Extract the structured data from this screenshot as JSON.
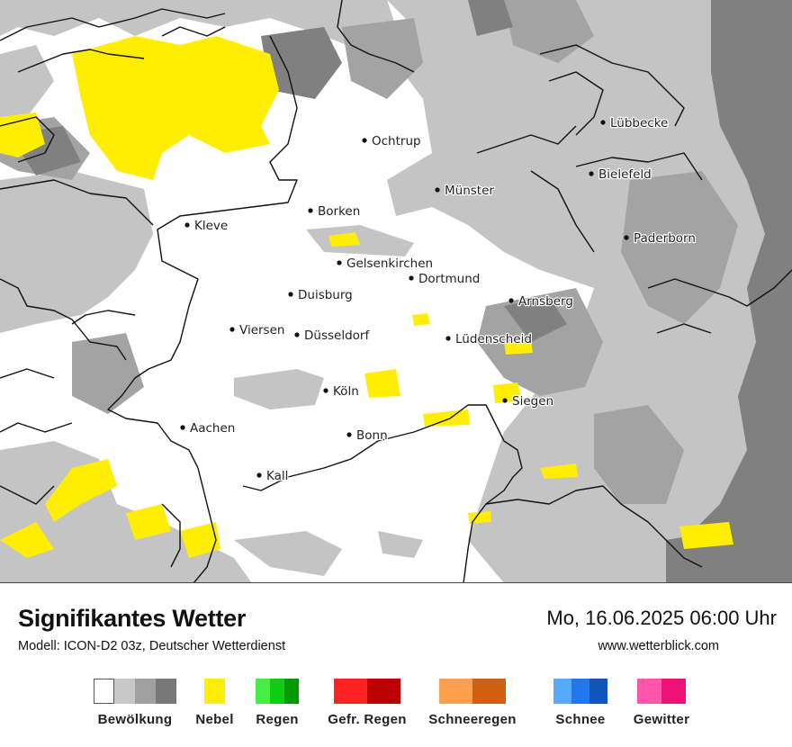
{
  "map": {
    "cities": [
      {
        "name": "Lübbecke"
      },
      {
        "name": "Ochtrup"
      },
      {
        "name": "Bielefeld"
      },
      {
        "name": "Münster"
      },
      {
        "name": "Borken"
      },
      {
        "name": "Kleve"
      },
      {
        "name": "Paderborn"
      },
      {
        "name": "Gelsenkirchen"
      },
      {
        "name": "Dortmund"
      },
      {
        "name": "Duisburg"
      },
      {
        "name": "Arnsberg"
      },
      {
        "name": "Viersen"
      },
      {
        "name": "Düsseldorf"
      },
      {
        "name": "Lüdenscheid"
      },
      {
        "name": "Köln"
      },
      {
        "name": "Siegen"
      },
      {
        "name": "Aachen"
      },
      {
        "name": "Bonn"
      },
      {
        "name": "Kall"
      }
    ]
  },
  "header": {
    "title": "Signifikantes Wetter",
    "model": "Modell: ICON-D2 03z, Deutscher Wetterdienst",
    "datetime": "Mo, 16.06.2025 06:00 Uhr",
    "website": "www.wetterblick.com"
  },
  "legend": [
    {
      "label": "Bewölkung",
      "colors": [
        "#ffffff",
        "#c8c8c8",
        "#a0a0a0",
        "#787878"
      ]
    },
    {
      "label": "Nebel",
      "colors": [
        "#ffee00"
      ]
    },
    {
      "label": "Regen",
      "colors": [
        "#44ee44",
        "#11cc11",
        "#009900"
      ]
    },
    {
      "label": "Gefr. Regen",
      "colors": [
        "#ff2222",
        "#bb0000"
      ]
    },
    {
      "label": "Schneeregen",
      "colors": [
        "#ffa050",
        "#d06010"
      ]
    },
    {
      "label": "Schnee",
      "colors": [
        "#55aaff",
        "#2277ee",
        "#1155bb"
      ]
    },
    {
      "label": "Gewitter",
      "colors": [
        "#ff55aa",
        "#ee1177"
      ]
    }
  ]
}
